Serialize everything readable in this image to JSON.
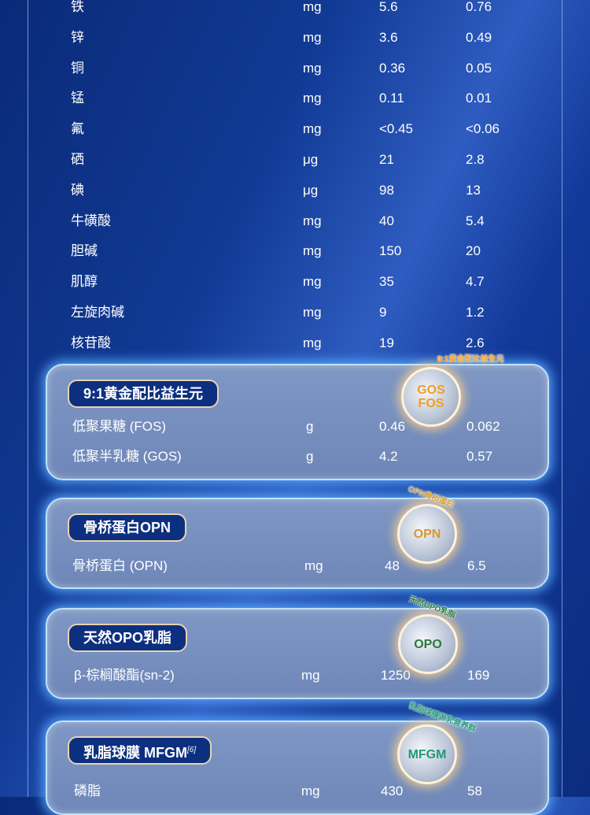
{
  "rows": [
    {
      "name": "铁",
      "unit": "mg",
      "v1": "5.6",
      "v2": "0.76"
    },
    {
      "name": "锌",
      "unit": "mg",
      "v1": "3.6",
      "v2": "0.49"
    },
    {
      "name": "铜",
      "unit": "mg",
      "v1": "0.36",
      "v2": "0.05"
    },
    {
      "name": "锰",
      "unit": "mg",
      "v1": "0.11",
      "v2": "0.01"
    },
    {
      "name": "氟",
      "unit": "mg",
      "v1": "<0.45",
      "v2": "<0.06"
    },
    {
      "name": "硒",
      "unit": "μg",
      "v1": "21",
      "v2": "2.8"
    },
    {
      "name": "碘",
      "unit": "μg",
      "v1": "98",
      "v2": "13"
    },
    {
      "name": "牛磺酸",
      "unit": "mg",
      "v1": "40",
      "v2": "5.4"
    },
    {
      "name": "胆碱",
      "unit": "mg",
      "v1": "150",
      "v2": "20"
    },
    {
      "name": "肌醇",
      "unit": "mg",
      "v1": "35",
      "v2": "4.7"
    },
    {
      "name": "左旋肉碱",
      "unit": "mg",
      "v1": "9",
      "v2": "1.2"
    },
    {
      "name": "核苷酸",
      "unit": "mg",
      "v1": "19",
      "v2": "2.6"
    }
  ],
  "sections": [
    {
      "title": "9:1黄金配比益生元",
      "badge_lines": [
        "GOS",
        "FOS"
      ],
      "badge_arc": "9:1黄金配比益生元",
      "badge_color": "#f0a020",
      "rows": [
        {
          "name": "低聚果糖 (FOS)",
          "unit": "g",
          "v1": "0.46",
          "v2": "0.062"
        },
        {
          "name": "低聚半乳糖 (GOS)",
          "unit": "g",
          "v1": "4.2",
          "v2": "0.57"
        }
      ]
    },
    {
      "title": "骨桥蛋白OPN",
      "badge_lines": [
        "OPN"
      ],
      "badge_arc": "OPN骨桥蛋白",
      "badge_color": "#d89a2a",
      "rows": [
        {
          "name": "骨桥蛋白 (OPN)",
          "unit": "mg",
          "v1": "48",
          "v2": "6.5"
        }
      ]
    },
    {
      "title": "天然OPO乳脂",
      "badge_lines": [
        "OPO"
      ],
      "badge_arc": "天然OPO乳脂",
      "badge_color": "#2a7a3a",
      "rows": [
        {
          "name": "β-棕榈酸酯(sn-2)",
          "unit": "mg",
          "v1": "1250",
          "v2": "169"
        }
      ]
    },
    {
      "title": "乳脂球膜 MFGM",
      "title_sup": "[6]",
      "badge_lines": [
        "MFGM"
      ],
      "badge_arc": "乳脂球膜源乳营养群",
      "badge_color": "#1f9a78",
      "rows": [
        {
          "name": "磷脂",
          "unit": "mg",
          "v1": "430",
          "v2": "58"
        }
      ]
    }
  ]
}
